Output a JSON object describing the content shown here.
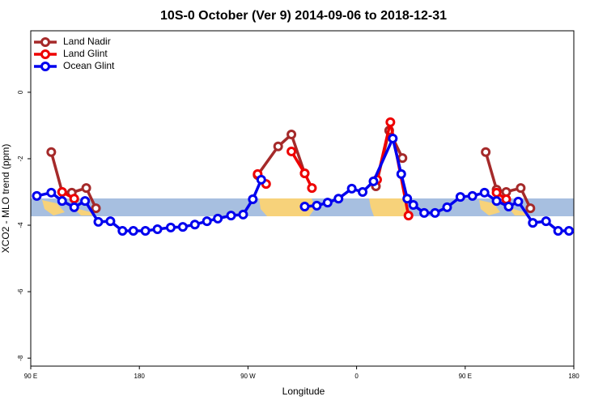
{
  "chart_data": {
    "type": "line",
    "title": "10S-0 October (Ver 9)   2014-09-06 to 2018-12-31",
    "x_label": "Longitude",
    "y_label": "XCO2 - MLO trend (ppm)",
    "xlim": [
      90,
      540
    ],
    "ylim": [
      -8.24,
      1.85
    ],
    "xticks": [
      {
        "value": 90,
        "label": "90 E"
      },
      180,
      {
        "value": 270,
        "label": "90 W"
      },
      {
        "value": 360,
        "label": "0"
      },
      {
        "value": 450,
        "label": "90 E"
      },
      {
        "value": 540,
        "label": "180"
      }
    ],
    "yticks": [
      0,
      -2,
      -4,
      -6,
      -8
    ],
    "legend": "top-left",
    "series": [
      {
        "name": "Land Nadir",
        "color": "#a52a2a",
        "x": [
          107,
          116,
          124,
          136,
          144,
          null,
          278,
          295,
          306,
          317,
          null,
          376,
          387,
          398,
          null,
          467,
          476,
          484,
          496,
          504
        ],
        "values": [
          -1.8,
          -3.0,
          -3.02,
          -2.88,
          -3.49,
          null,
          -2.49,
          -1.63,
          -1.27,
          -2.44,
          null,
          -2.83,
          -1.15,
          -1.98,
          null,
          -1.8,
          -2.93,
          -3.0,
          -2.88,
          -3.49
        ]
      },
      {
        "name": "Land Glint",
        "color": "#ee0000",
        "x": [
          116,
          126,
          null,
          278,
          285,
          null,
          306,
          317,
          323,
          null,
          377,
          388,
          403,
          null,
          476,
          484
        ],
        "values": [
          -3.0,
          -3.2,
          null,
          -2.46,
          -2.76,
          null,
          -1.78,
          -2.44,
          -2.88,
          null,
          -2.63,
          -0.9,
          -3.71,
          null,
          -3.02,
          -3.22
        ]
      },
      {
        "name": "Ocean Glint",
        "color": "#0000ee",
        "x": [
          95,
          107,
          116,
          126,
          135,
          146,
          156,
          166,
          175,
          185,
          195,
          206,
          216,
          226,
          236,
          245,
          256,
          266,
          274,
          281,
          null,
          317,
          327,
          336,
          345,
          356,
          365,
          374,
          390,
          397,
          402,
          407,
          416,
          425,
          435,
          446,
          456,
          466,
          476,
          486,
          494,
          506,
          517,
          527,
          536
        ],
        "values": [
          -3.12,
          -3.02,
          -3.27,
          -3.46,
          -3.27,
          -3.9,
          -3.88,
          -4.17,
          -4.17,
          -4.17,
          -4.12,
          -4.07,
          -4.05,
          -3.98,
          -3.88,
          -3.8,
          -3.71,
          -3.68,
          -3.22,
          -2.63,
          null,
          -3.44,
          -3.41,
          -3.32,
          -3.2,
          -2.9,
          -3.0,
          -2.68,
          -1.39,
          -2.46,
          -3.2,
          -3.39,
          -3.63,
          -3.63,
          -3.46,
          -3.15,
          -3.12,
          -3.02,
          -3.27,
          -3.44,
          -3.29,
          -3.93,
          -3.88,
          -4.17,
          -4.17
        ]
      }
    ]
  }
}
